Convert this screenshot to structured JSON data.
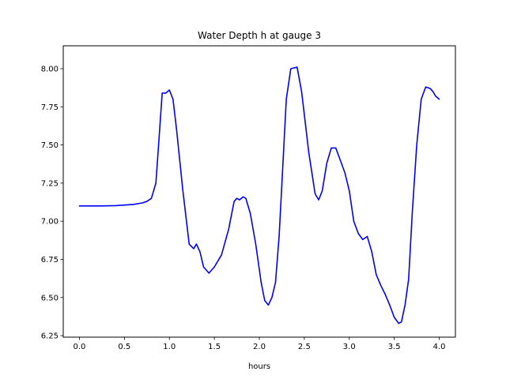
{
  "chart_data": {
    "type": "line",
    "title": "Water Depth h at gauge 3",
    "xlabel": "hours",
    "ylabel": "",
    "xlim": [
      -0.18,
      4.18
    ],
    "ylim": [
      6.24,
      8.15
    ],
    "xticks": [
      0.0,
      0.5,
      1.0,
      1.5,
      2.0,
      2.5,
      3.0,
      3.5,
      4.0
    ],
    "yticks": [
      6.25,
      6.5,
      6.75,
      7.0,
      7.25,
      7.5,
      7.75,
      8.0
    ],
    "xtick_labels": [
      "0.0",
      "0.5",
      "1.0",
      "1.5",
      "2.0",
      "2.5",
      "3.0",
      "3.5",
      "4.0"
    ],
    "ytick_labels": [
      "6.25",
      "6.50",
      "6.75",
      "7.00",
      "7.25",
      "7.50",
      "7.75",
      "8.00"
    ],
    "grid": false,
    "line_color": "#0000ff",
    "series": [
      {
        "x": [
          0.0,
          0.2,
          0.4,
          0.6,
          0.7,
          0.75,
          0.8,
          0.85,
          0.88,
          0.92,
          0.96,
          1.0,
          1.04,
          1.08,
          1.15,
          1.22,
          1.27,
          1.3,
          1.34,
          1.38,
          1.44,
          1.5,
          1.58,
          1.66,
          1.72,
          1.75,
          1.78,
          1.82,
          1.85,
          1.9,
          1.96,
          2.02,
          2.06,
          2.1,
          2.14,
          2.18,
          2.22,
          2.26,
          2.3,
          2.35,
          2.42,
          2.47,
          2.55,
          2.62,
          2.66,
          2.7,
          2.75,
          2.8,
          2.85,
          2.9,
          2.95,
          3.0,
          3.05,
          3.1,
          3.15,
          3.2,
          3.25,
          3.3,
          3.35,
          3.4,
          3.45,
          3.5,
          3.55,
          3.58,
          3.62,
          3.66,
          3.7,
          3.75,
          3.8,
          3.85,
          3.9,
          3.93,
          3.96,
          4.0
        ],
        "y": [
          7.1,
          7.1,
          7.102,
          7.11,
          7.12,
          7.13,
          7.15,
          7.25,
          7.5,
          7.84,
          7.84,
          7.86,
          7.8,
          7.6,
          7.2,
          6.85,
          6.82,
          6.85,
          6.8,
          6.7,
          6.66,
          6.7,
          6.78,
          6.95,
          7.13,
          7.15,
          7.14,
          7.16,
          7.15,
          7.05,
          6.85,
          6.6,
          6.48,
          6.45,
          6.5,
          6.6,
          6.9,
          7.35,
          7.8,
          8.0,
          8.01,
          7.85,
          7.45,
          7.18,
          7.14,
          7.2,
          7.38,
          7.48,
          7.48,
          7.4,
          7.32,
          7.2,
          7.0,
          6.92,
          6.88,
          6.9,
          6.8,
          6.65,
          6.58,
          6.52,
          6.45,
          6.37,
          6.33,
          6.34,
          6.45,
          6.62,
          7.05,
          7.5,
          7.8,
          7.88,
          7.87,
          7.85,
          7.82,
          7.8
        ]
      }
    ]
  }
}
